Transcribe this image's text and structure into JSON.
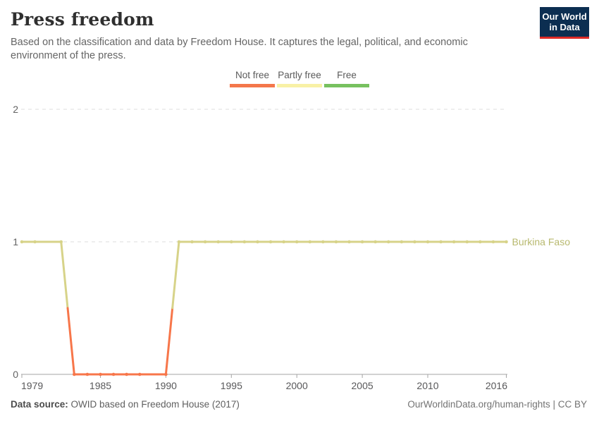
{
  "header": {
    "title": "Press freedom",
    "subtitle": "Based on the classification and data by Freedom House. It captures the legal, political, and economic environment of the press.",
    "logo": {
      "line1": "Our World",
      "line2": "in Data",
      "bg_color": "#0c2e51",
      "accent_color": "#dc2a26"
    }
  },
  "legend": {
    "items": [
      {
        "label": "Not free",
        "color": "#f4774b"
      },
      {
        "label": "Partly free",
        "color": "#f8f1a6"
      },
      {
        "label": "Free",
        "color": "#77c15f"
      }
    ]
  },
  "chart_data": {
    "type": "line",
    "title": "Press freedom",
    "xlabel": "",
    "ylabel": "",
    "xlim": [
      1979,
      2016
    ],
    "ylim": [
      0,
      2
    ],
    "grid": "dashed horizontal",
    "xticks": [
      1979,
      1985,
      1990,
      1995,
      2000,
      2005,
      2010,
      2016
    ],
    "yticks": [
      0,
      1,
      2
    ],
    "value_categories": {
      "0": "Not free",
      "1": "Partly free",
      "2": "Free"
    },
    "colors": {
      "line_partly_free": "#d7d389",
      "line_not_free": "#f7764a",
      "series_label": "#b8b96f",
      "grid": "#dedede",
      "axis": "#a5a5a5",
      "x_tick_label": "#58585a",
      "y_tick_label": "#636363"
    },
    "series": [
      {
        "name": "Burkina Faso",
        "points": [
          {
            "year": 1979,
            "value": 1
          },
          {
            "year": 1980,
            "value": 1
          },
          {
            "year": 1981,
            "value": 1,
            "marker": false
          },
          {
            "year": 1982,
            "value": 1
          },
          {
            "year": 1983,
            "value": 0
          },
          {
            "year": 1984,
            "value": 0
          },
          {
            "year": 1985,
            "value": 0
          },
          {
            "year": 1986,
            "value": 0
          },
          {
            "year": 1987,
            "value": 0
          },
          {
            "year": 1988,
            "value": 0
          },
          {
            "year": 1989,
            "value": 0,
            "marker": false
          },
          {
            "year": 1990,
            "value": 0
          },
          {
            "year": 1991,
            "value": 1
          },
          {
            "year": 1992,
            "value": 1
          },
          {
            "year": 1993,
            "value": 1
          },
          {
            "year": 1994,
            "value": 1
          },
          {
            "year": 1995,
            "value": 1
          },
          {
            "year": 1996,
            "value": 1
          },
          {
            "year": 1997,
            "value": 1
          },
          {
            "year": 1998,
            "value": 1
          },
          {
            "year": 1999,
            "value": 1
          },
          {
            "year": 2000,
            "value": 1
          },
          {
            "year": 2001,
            "value": 1
          },
          {
            "year": 2002,
            "value": 1
          },
          {
            "year": 2003,
            "value": 1
          },
          {
            "year": 2004,
            "value": 1
          },
          {
            "year": 2005,
            "value": 1
          },
          {
            "year": 2006,
            "value": 1
          },
          {
            "year": 2007,
            "value": 1
          },
          {
            "year": 2008,
            "value": 1
          },
          {
            "year": 2009,
            "value": 1
          },
          {
            "year": 2010,
            "value": 1
          },
          {
            "year": 2011,
            "value": 1
          },
          {
            "year": 2012,
            "value": 1
          },
          {
            "year": 2013,
            "value": 1
          },
          {
            "year": 2014,
            "value": 1
          },
          {
            "year": 2015,
            "value": 1
          },
          {
            "year": 2016,
            "value": 1
          }
        ]
      }
    ]
  },
  "footer": {
    "source_label": "Data source:",
    "source_text": "OWID based on Freedom House (2017)",
    "link_text": "OurWorldinData.org/human-rights | CC BY"
  }
}
